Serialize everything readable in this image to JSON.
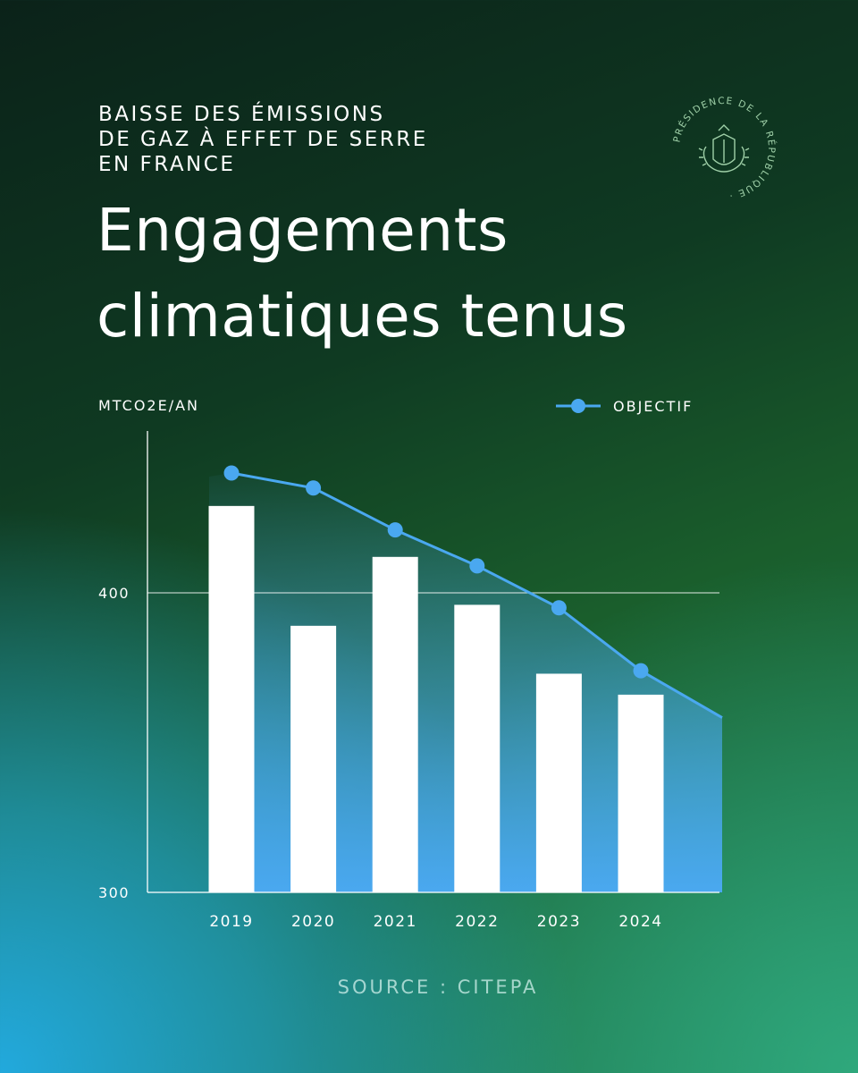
{
  "header": {
    "subtitle_lines": [
      "BAISSE DES ÉMISSIONS",
      "DE GAZ À EFFET DE SERRE",
      "EN FRANCE"
    ],
    "title_lines": [
      "Engagements",
      "climatiques tenus"
    ]
  },
  "seal": {
    "text": "PRÉSIDENCE DE LA RÉPUBLIQUE",
    "icon": "presidential-seal-icon",
    "color": "#9fd0a8"
  },
  "chart_data": {
    "type": "bar",
    "categories": [
      "2019",
      "2020",
      "2021",
      "2022",
      "2023",
      "2024"
    ],
    "series": [
      {
        "type": "bar",
        "values": [
          429,
          389,
          412,
          396,
          373,
          366
        ],
        "color": "#ffffff"
      },
      {
        "name": "OBJECTIF",
        "type": "line",
        "values": [
          440,
          435,
          421,
          409,
          395,
          374
        ],
        "color": "#4aa8f0"
      }
    ],
    "ylabel": "MTCO2E/AN",
    "yticks": [
      300,
      400
    ],
    "ylim": [
      300,
      455
    ],
    "grid": "y=400 only",
    "legend_position": "top-right",
    "area_fill": "gradient under objectif line"
  },
  "legend": {
    "label": "OBJECTIF"
  },
  "footer": {
    "source": "SOURCE : CITEPA"
  }
}
